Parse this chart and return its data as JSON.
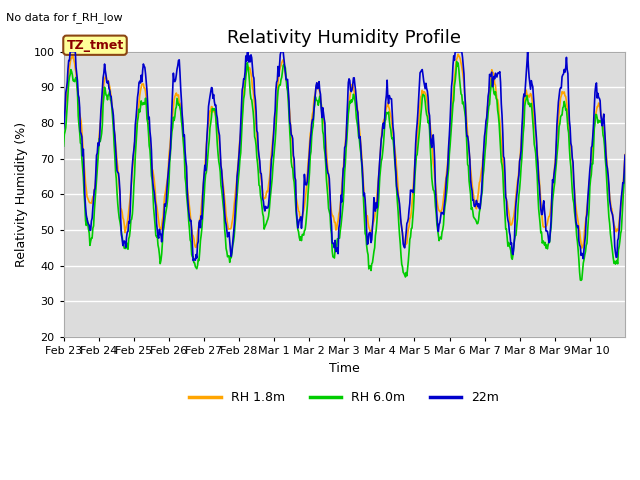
{
  "title": "Relativity Humidity Profile",
  "subtitle": "No data for f_RH_low",
  "ylabel": "Relativity Humidity (%)",
  "xlabel": "Time",
  "annotation": "TZ_tmet",
  "ylim": [
    20,
    100
  ],
  "yticks": [
    20,
    30,
    40,
    50,
    60,
    70,
    80,
    90,
    100
  ],
  "x_labels": [
    "Feb 23",
    "Feb 24",
    "Feb 25",
    "Feb 26",
    "Feb 27",
    "Feb 28",
    "Mar 1",
    "Mar 2",
    "Mar 3",
    "Mar 4",
    "Mar 5",
    "Mar 6",
    "Mar 7",
    "Mar 8",
    "Mar 9",
    "Mar 10"
  ],
  "color_rh18": "#FFA500",
  "color_rh60": "#00CC00",
  "color_22m": "#0000CC",
  "legend_labels": [
    "RH 1.8m",
    "RH 6.0m",
    "22m"
  ],
  "bg_color": "#DCDCDC",
  "fig_bg_color": "#FFFFFF",
  "grid_color": "#FFFFFF",
  "annotation_bg": "#FFFF99",
  "annotation_fg": "#8B0000",
  "annotation_edge": "#8B4513",
  "spine_color": "#AAAAAA",
  "title_fontsize": 13,
  "label_fontsize": 9,
  "tick_fontsize": 8,
  "legend_fontsize": 9,
  "subtitle_fontsize": 8,
  "linewidth": 1.2,
  "n_days": 16
}
